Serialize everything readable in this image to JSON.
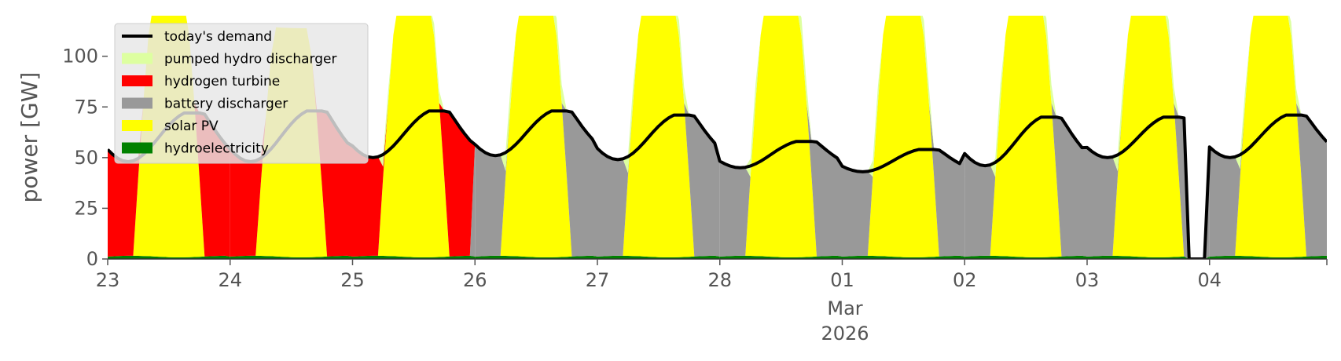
{
  "chart_data": {
    "type": "area",
    "ylabel": "power [GW]",
    "ylim": [
      0,
      120
    ],
    "yticks": [
      0,
      25,
      50,
      75,
      100
    ],
    "x_start": "2026-02-23",
    "x_end": "2026-03-04 23:00",
    "xticks": [
      {
        "date": "2026-02-23",
        "label": "23"
      },
      {
        "date": "2026-02-24",
        "label": "24"
      },
      {
        "date": "2026-02-25",
        "label": "25"
      },
      {
        "date": "2026-02-26",
        "label": "26"
      },
      {
        "date": "2026-02-27",
        "label": "27"
      },
      {
        "date": "2026-02-28",
        "label": "28"
      },
      {
        "date": "2026-03-01",
        "label": "01"
      },
      {
        "date": "2026-03-02",
        "label": "02"
      },
      {
        "date": "2026-03-03",
        "label": "03"
      },
      {
        "date": "2026-03-04",
        "label": "04"
      }
    ],
    "month_label": "Mar",
    "year_label": "2026",
    "legend_position": "upper-left",
    "grid": false,
    "stack_order": [
      "hydroelectricity",
      "solar PV",
      "battery discharger",
      "hydrogen turbine",
      "pumped hydro discharger"
    ],
    "series": [
      {
        "name": "hydroelectricity",
        "color": "#008000"
      },
      {
        "name": "solar PV",
        "color": "#ffff00"
      },
      {
        "name": "battery discharger",
        "color": "#999999"
      },
      {
        "name": "hydrogen turbine",
        "color": "#ff0000"
      },
      {
        "name": "pumped hydro discharger",
        "color": "#ddffa0"
      },
      {
        "name": "today's demand",
        "color": "#000000"
      }
    ],
    "days": [
      {
        "date": "2026-02-23",
        "demand_peak": 72,
        "demand_min": 48,
        "solar_peak": 125,
        "backup": "hydrogen turbine",
        "pumped_hydro": 0
      },
      {
        "date": "2026-02-24",
        "demand_peak": 73,
        "demand_min": 48,
        "solar_peak": 113,
        "backup": "hydrogen turbine",
        "pumped_hydro": 0
      },
      {
        "date": "2026-02-25",
        "demand_peak": 73,
        "demand_min": 50,
        "solar_peak": 125,
        "backup": "hydrogen turbine",
        "pumped_hydro": 6
      },
      {
        "date": "2026-02-26",
        "demand_peak": 73,
        "demand_min": 51,
        "solar_peak": 125,
        "backup": "battery discharger",
        "pumped_hydro": 9
      },
      {
        "date": "2026-02-27",
        "demand_peak": 71,
        "demand_min": 49,
        "solar_peak": 125,
        "backup": "battery discharger",
        "pumped_hydro": 8
      },
      {
        "date": "2026-02-28",
        "demand_peak": 58,
        "demand_min": 45,
        "solar_peak": 125,
        "backup": "battery discharger",
        "pumped_hydro": 9
      },
      {
        "date": "2026-03-01",
        "demand_peak": 54,
        "demand_min": 43,
        "solar_peak": 125,
        "backup": "battery discharger",
        "pumped_hydro": 8
      },
      {
        "date": "2026-03-02",
        "demand_peak": 70,
        "demand_min": 46,
        "solar_peak": 125,
        "backup": "battery discharger",
        "pumped_hydro": 9
      },
      {
        "date": "2026-03-03",
        "demand_peak": 70,
        "demand_min": 50,
        "solar_peak": 125,
        "backup": "battery discharger",
        "pumped_hydro": 8
      },
      {
        "date": "2026-03-04",
        "demand_peak": 71,
        "demand_min": 50,
        "solar_peak": 125,
        "backup": "battery discharger",
        "pumped_hydro": 7
      }
    ],
    "demand_gap": {
      "from": "2026-03-03 20:00",
      "to": "2026-03-03 23:00",
      "value": 0
    }
  }
}
